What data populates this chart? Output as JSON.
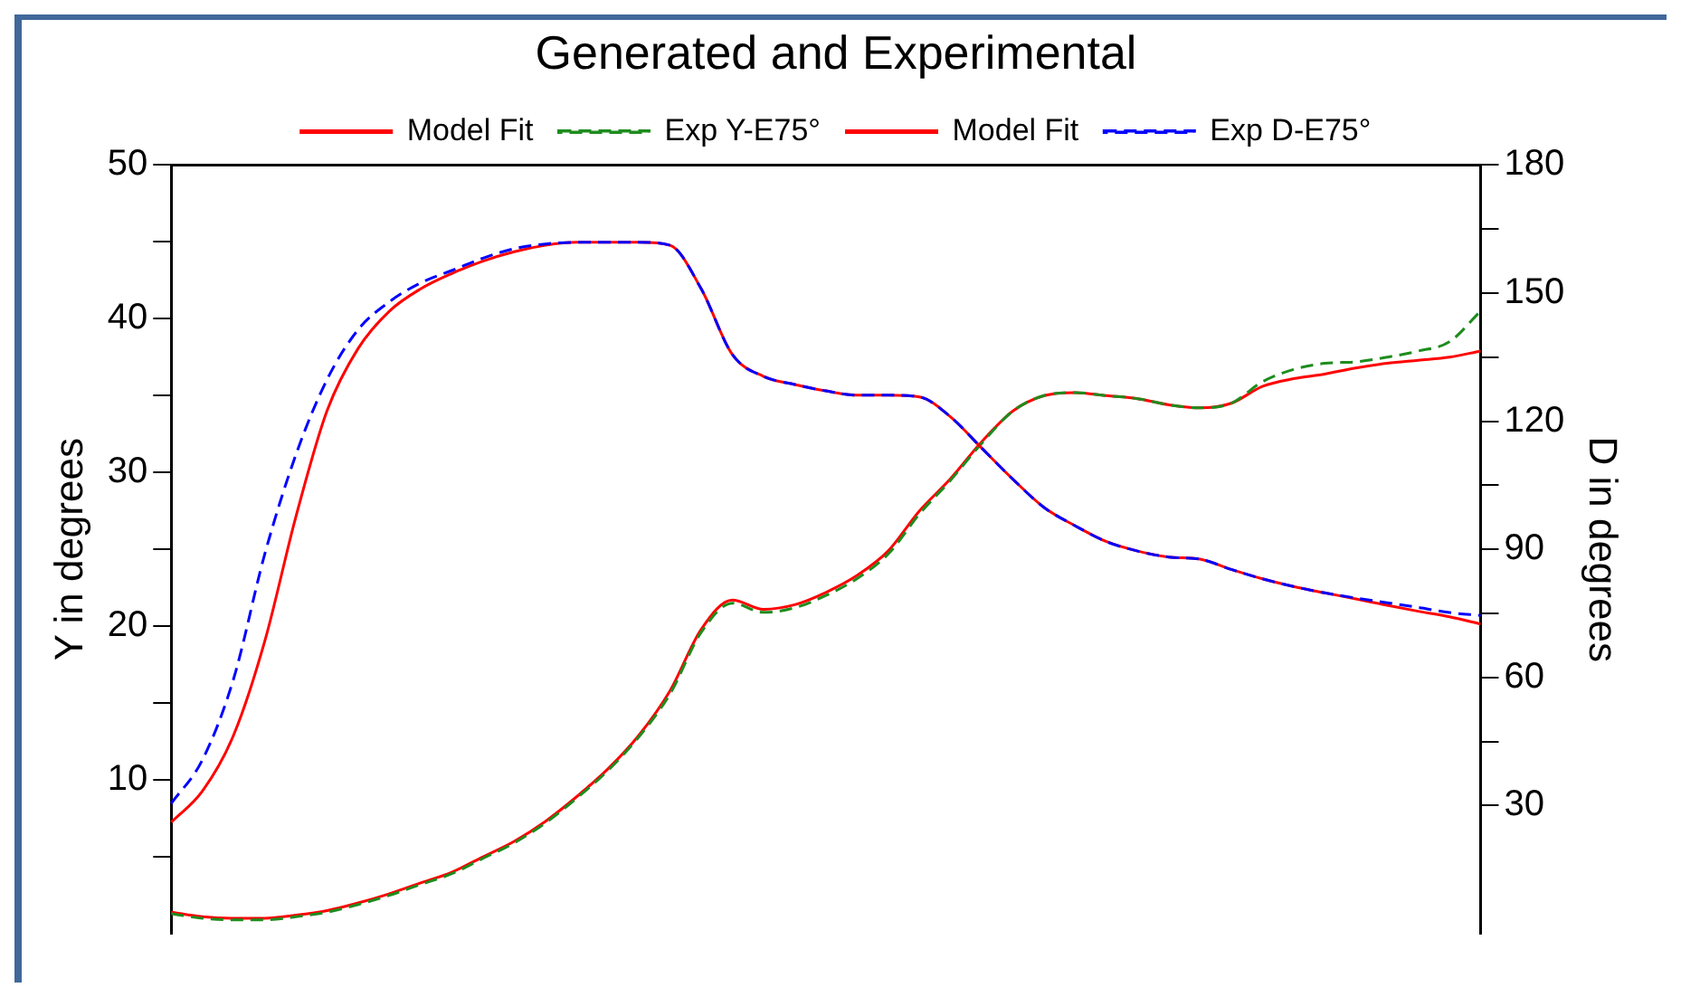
{
  "chart_data": {
    "type": "line",
    "title": "Generated and Experimental",
    "ylabel": "Y in degrees",
    "y2label": "D in degrees",
    "categories": [
      null,
      null,
      null,
      null,
      null,
      null,
      null,
      null,
      null,
      null,
      null,
      null,
      null,
      null,
      null,
      null,
      null,
      null,
      null,
      null,
      null,
      null,
      null,
      null,
      null,
      null,
      null,
      null,
      null,
      null,
      null,
      null,
      null,
      null,
      null,
      null,
      null,
      null,
      null,
      null,
      null,
      null,
      null
    ],
    "series": [
      {
        "name": "Model Fit",
        "color": "#ff0000",
        "axis": "y",
        "line_style": "solid",
        "values": [
          1.4,
          1.1,
          1.0,
          1.0,
          1.2,
          1.5,
          2.0,
          2.6,
          3.3,
          4.0,
          5.0,
          6.0,
          7.3,
          8.9,
          10.7,
          12.9,
          15.8,
          19.8,
          21.7,
          21.1,
          21.4,
          22.2,
          23.3,
          24.9,
          27.5,
          29.6,
          32.0,
          34.0,
          35.0,
          35.2,
          35.0,
          34.8,
          34.4,
          34.2,
          34.5,
          35.6,
          36.1,
          36.4,
          36.8,
          37.1,
          37.3,
          37.5,
          37.9
        ]
      },
      {
        "name": "Exp Y-E75°",
        "color": "#1e8c1e",
        "axis": "y",
        "line_style": "dashed",
        "values": [
          1.3,
          1.0,
          0.9,
          0.9,
          1.1,
          1.4,
          1.9,
          2.5,
          3.2,
          3.9,
          4.9,
          5.9,
          7.2,
          8.8,
          10.6,
          12.8,
          15.6,
          19.6,
          21.5,
          20.9,
          21.2,
          22.0,
          23.1,
          24.7,
          27.3,
          29.5,
          31.9,
          34.0,
          35.0,
          35.2,
          35.0,
          34.8,
          34.4,
          34.2,
          34.5,
          35.9,
          36.7,
          37.1,
          37.2,
          37.5,
          37.9,
          38.5,
          40.5
        ]
      },
      {
        "name": "Model Fit",
        "color": "#ff0000",
        "axis": "y2",
        "line_style": "solid",
        "values": [
          26.1,
          33.4,
          46.5,
          68.5,
          97.7,
          122.5,
          137.1,
          145.8,
          151,
          154.6,
          157.5,
          159.7,
          161.2,
          161.9,
          161.9,
          161.9,
          161.2,
          151,
          135.6,
          130.5,
          128.6,
          127.1,
          126.1,
          126.1,
          125.7,
          121,
          113.7,
          106.4,
          99.8,
          95.5,
          91.8,
          89.6,
          88.2,
          87.7,
          85.3,
          83.1,
          81.3,
          79.8,
          78.4,
          76.9,
          75.5,
          74.2,
          72.5
        ]
      },
      {
        "name": "Exp D-E75°",
        "color": "#0000ff",
        "axis": "y2",
        "line_style": "dashed",
        "values": [
          30.5,
          40.7,
          59.7,
          88.9,
          112.2,
          129.8,
          141.5,
          148,
          152.4,
          155.3,
          158.2,
          160.4,
          161.5,
          161.9,
          161.9,
          161.9,
          161.2,
          151,
          135.6,
          130.5,
          128.6,
          127.1,
          126.1,
          126.1,
          125.7,
          121,
          113.7,
          106.4,
          99.8,
          95.5,
          91.8,
          89.6,
          88.2,
          87.7,
          85.3,
          83.1,
          81.3,
          79.8,
          78.6,
          77.5,
          76.4,
          75.2,
          74.5
        ]
      }
    ],
    "ylim": [
      0,
      50
    ],
    "yticks": [
      {
        "value": 5,
        "label": null
      },
      10,
      {
        "value": 15,
        "label": null
      },
      20,
      {
        "value": 25,
        "label": null
      },
      30,
      {
        "value": 35,
        "label": null
      },
      40,
      {
        "value": 45,
        "label": null
      },
      50
    ],
    "y2lim": [
      0,
      180
    ],
    "y2ticks": [
      30,
      {
        "value": 45,
        "label": null
      },
      60,
      {
        "value": 75,
        "label": null
      },
      90,
      {
        "value": 105,
        "label": null
      },
      120,
      {
        "value": 135,
        "label": null
      },
      150,
      {
        "value": 165,
        "label": null
      },
      180
    ],
    "grid": false,
    "legend": "top",
    "marker": "none"
  }
}
